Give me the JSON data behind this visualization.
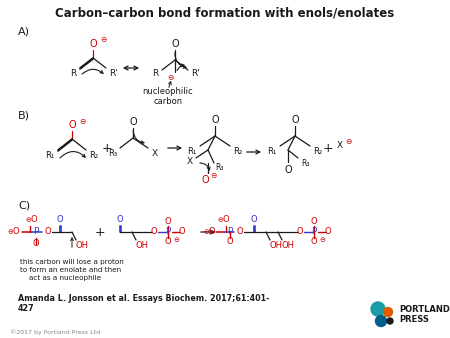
{
  "title": "Carbon–carbon bond formation with enols/enolates",
  "bg_color": "#ffffff",
  "red": "#cc0000",
  "blue": "#3333cc",
  "black": "#1a1a1a",
  "gray": "#888888",
  "citation": "Amanda L. Jonsson et al. Essays Biochem. 2017;61:401-\n427",
  "copyright": "©2017 by Portland Press Ltd"
}
